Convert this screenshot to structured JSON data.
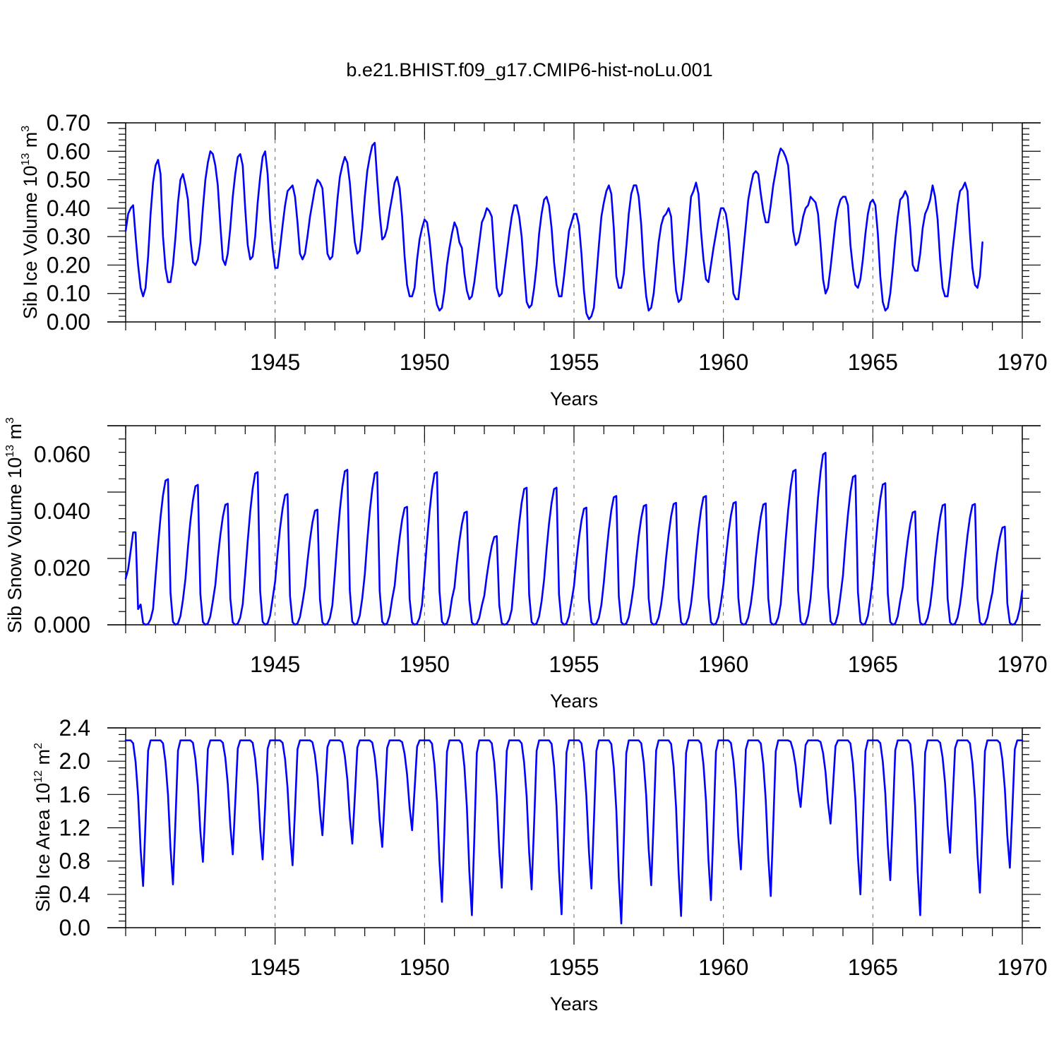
{
  "figure_title": "b.e21.BHIST.f09_g17.CMIP6-hist-noLu.001",
  "colors": {
    "series": "#0000ff",
    "axis": "#000000",
    "background": "#ffffff"
  },
  "chart_data": [
    {
      "type": "line",
      "title": "",
      "xlabel": "Years",
      "ylabel": "Sib Ice Volume 10",
      "ylabel_exponent": "13",
      "ylabel_unit": " m",
      "ylabel_unit_exponent": "3",
      "xlim": [
        1940.0,
        1970.0
      ],
      "ylim": [
        0.0,
        0.7
      ],
      "x_ticks": [
        1945,
        1950,
        1955,
        1960,
        1965,
        1970
      ],
      "x_tick_labels": [
        "1945",
        "1950",
        "1955",
        "1960",
        "1965",
        "1970"
      ],
      "y_ticks": [
        0.0,
        0.1,
        0.2,
        0.3,
        0.4,
        0.5,
        0.6,
        0.7
      ],
      "y_tick_labels": [
        "0.00",
        "0.10",
        "0.20",
        "0.30",
        "0.40",
        "0.50",
        "0.60",
        "0.70"
      ],
      "grid": "vertical dashed at labeled years",
      "series": [
        {
          "x_start": 1940.0,
          "x_step_months": 1,
          "values": [
            0.32,
            0.38,
            0.4,
            0.41,
            0.3,
            0.2,
            0.12,
            0.09,
            0.12,
            0.23,
            0.38,
            0.49,
            0.55,
            0.57,
            0.52,
            0.3,
            0.19,
            0.14,
            0.14,
            0.2,
            0.3,
            0.42,
            0.5,
            0.52,
            0.48,
            0.43,
            0.29,
            0.21,
            0.2,
            0.22,
            0.28,
            0.4,
            0.5,
            0.56,
            0.6,
            0.59,
            0.55,
            0.48,
            0.34,
            0.22,
            0.2,
            0.24,
            0.33,
            0.44,
            0.52,
            0.58,
            0.59,
            0.55,
            0.4,
            0.27,
            0.22,
            0.23,
            0.3,
            0.42,
            0.51,
            0.58,
            0.6,
            0.52,
            0.36,
            0.26,
            0.19,
            0.19,
            0.26,
            0.34,
            0.41,
            0.46,
            0.47,
            0.48,
            0.44,
            0.35,
            0.24,
            0.22,
            0.24,
            0.3,
            0.37,
            0.42,
            0.47,
            0.5,
            0.49,
            0.47,
            0.36,
            0.24,
            0.22,
            0.23,
            0.32,
            0.43,
            0.51,
            0.55,
            0.58,
            0.56,
            0.49,
            0.38,
            0.28,
            0.24,
            0.25,
            0.33,
            0.44,
            0.53,
            0.58,
            0.62,
            0.63,
            0.5,
            0.38,
            0.29,
            0.3,
            0.33,
            0.39,
            0.44,
            0.49,
            0.51,
            0.47,
            0.37,
            0.23,
            0.13,
            0.09,
            0.09,
            0.12,
            0.22,
            0.29,
            0.33,
            0.36,
            0.35,
            0.29,
            0.2,
            0.11,
            0.06,
            0.04,
            0.05,
            0.11,
            0.2,
            0.26,
            0.31,
            0.35,
            0.33,
            0.28,
            0.26,
            0.17,
            0.11,
            0.08,
            0.09,
            0.14,
            0.21,
            0.28,
            0.35,
            0.37,
            0.4,
            0.39,
            0.37,
            0.24,
            0.12,
            0.09,
            0.1,
            0.17,
            0.24,
            0.31,
            0.37,
            0.41,
            0.41,
            0.37,
            0.3,
            0.18,
            0.07,
            0.05,
            0.06,
            0.12,
            0.2,
            0.31,
            0.38,
            0.43,
            0.44,
            0.41,
            0.33,
            0.21,
            0.13,
            0.09,
            0.09,
            0.16,
            0.24,
            0.32,
            0.35,
            0.38,
            0.38,
            0.34,
            0.24,
            0.11,
            0.03,
            0.01,
            0.02,
            0.05,
            0.16,
            0.27,
            0.37,
            0.42,
            0.46,
            0.48,
            0.45,
            0.33,
            0.16,
            0.12,
            0.12,
            0.17,
            0.27,
            0.38,
            0.45,
            0.48,
            0.48,
            0.44,
            0.34,
            0.19,
            0.09,
            0.04,
            0.05,
            0.1,
            0.19,
            0.28,
            0.34,
            0.37,
            0.38,
            0.4,
            0.37,
            0.22,
            0.11,
            0.07,
            0.08,
            0.15,
            0.24,
            0.34,
            0.44,
            0.46,
            0.49,
            0.45,
            0.32,
            0.22,
            0.15,
            0.14,
            0.2,
            0.26,
            0.31,
            0.36,
            0.4,
            0.4,
            0.38,
            0.32,
            0.21,
            0.1,
            0.08,
            0.08,
            0.16,
            0.25,
            0.34,
            0.43,
            0.48,
            0.52,
            0.53,
            0.52,
            0.45,
            0.39,
            0.35,
            0.35,
            0.41,
            0.48,
            0.53,
            0.58,
            0.61,
            0.6,
            0.58,
            0.55,
            0.44,
            0.32,
            0.27,
            0.28,
            0.32,
            0.37,
            0.4,
            0.41,
            0.44,
            0.43,
            0.42,
            0.38,
            0.27,
            0.15,
            0.1,
            0.12,
            0.19,
            0.27,
            0.35,
            0.4,
            0.43,
            0.44,
            0.44,
            0.41,
            0.27,
            0.19,
            0.13,
            0.12,
            0.15,
            0.22,
            0.31,
            0.38,
            0.42,
            0.43,
            0.41,
            0.31,
            0.16,
            0.07,
            0.04,
            0.05,
            0.1,
            0.19,
            0.29,
            0.37,
            0.43,
            0.44,
            0.46,
            0.44,
            0.33,
            0.2,
            0.18,
            0.18,
            0.24,
            0.33,
            0.38,
            0.4,
            0.43,
            0.48,
            0.44,
            0.36,
            0.22,
            0.12,
            0.09,
            0.09,
            0.16,
            0.25,
            0.33,
            0.41,
            0.46,
            0.47,
            0.49,
            0.46,
            0.31,
            0.19,
            0.13,
            0.12,
            0.16,
            0.28
          ]
        }
      ]
    },
    {
      "type": "line",
      "title": "",
      "xlabel": "Years",
      "ylabel": "Sib Snow Volume 10",
      "ylabel_exponent": "13",
      "ylabel_unit": " m",
      "ylabel_unit_exponent": "3",
      "xlim": [
        1940.0,
        1970.0
      ],
      "ylim": [
        0.0,
        0.07
      ],
      "x_ticks": [
        1945,
        1950,
        1955,
        1960,
        1965,
        1970
      ],
      "x_tick_labels": [
        "1945",
        "1950",
        "1955",
        "1960",
        "1965",
        "1970"
      ],
      "y_ticks": [
        0.0,
        0.02,
        0.04,
        0.06
      ],
      "y_tick_labels": [
        "0.000",
        "0.020",
        "0.040",
        "0.060"
      ],
      "grid": "vertical dashed at labeled years",
      "series": [
        {
          "x_start": 1940.0,
          "x_step_months": 1,
          "peaks": [
            0.0325,
            0.0512,
            0.0492,
            0.0426,
            0.0537,
            0.046,
            0.0405,
            0.0545,
            0.0537,
            0.0415,
            0.0537,
            0.0398,
            0.0312,
            0.0482,
            0.0482,
            0.0412,
            0.0453,
            0.0422,
            0.0429,
            0.0453,
            0.0432,
            0.0427,
            0.0545,
            0.0605,
            0.0525,
            0.0498,
            0.0399,
            0.0424,
            0.0425,
            0.0345
          ]
        }
      ]
    },
    {
      "type": "line",
      "title": "",
      "xlabel": "Years",
      "ylabel": "Sib Ice Area 10",
      "ylabel_exponent": "12",
      "ylabel_unit": " m",
      "ylabel_unit_exponent": "2",
      "xlim": [
        1940.0,
        1970.0
      ],
      "ylim": [
        0.0,
        2.4
      ],
      "x_ticks": [
        1945,
        1950,
        1955,
        1960,
        1965,
        1970
      ],
      "x_tick_labels": [
        "1945",
        "1950",
        "1955",
        "1960",
        "1965",
        "1970"
      ],
      "y_ticks": [
        0.0,
        0.4,
        0.8,
        1.2,
        1.6,
        2.0,
        2.4
      ],
      "y_tick_labels": [
        "0.0",
        "0.4",
        "0.8",
        "1.2",
        "1.6",
        "2.0",
        "2.4"
      ],
      "grid": "vertical dashed at labeled years",
      "series": [
        {
          "x_start": 1940.0,
          "x_step_months": 1,
          "max": 2.25,
          "minima": [
            0.5,
            0.52,
            0.79,
            0.88,
            0.82,
            0.75,
            1.11,
            1.01,
            0.97,
            1.17,
            0.31,
            0.15,
            0.48,
            0.46,
            0.16,
            0.47,
            0.05,
            0.51,
            0.14,
            0.33,
            0.7,
            0.38,
            1.45,
            1.25,
            0.4,
            0.57,
            0.15,
            0.9,
            0.42,
            0.72
          ]
        }
      ]
    }
  ]
}
